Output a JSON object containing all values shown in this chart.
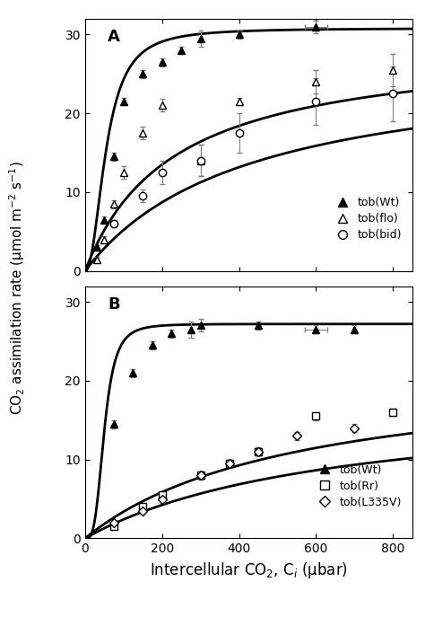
{
  "panel_A": {
    "label": "A",
    "wt": {
      "x": [
        30,
        50,
        75,
        100,
        150,
        200,
        250,
        300,
        400,
        600
      ],
      "y": [
        3.0,
        6.5,
        14.5,
        21.5,
        25.0,
        26.5,
        28.0,
        29.5,
        30.0,
        31.0
      ],
      "yerr": [
        0.3,
        0.4,
        0.5,
        0.5,
        0.5,
        0.5,
        0.5,
        1.0,
        0.5,
        0.8
      ],
      "xerr": [
        null,
        null,
        null,
        null,
        null,
        null,
        null,
        null,
        null,
        30
      ]
    },
    "flo": {
      "x": [
        30,
        50,
        75,
        100,
        150,
        200,
        300,
        400,
        600,
        800
      ],
      "y": [
        1.5,
        4.0,
        8.5,
        12.5,
        17.5,
        21.0,
        14.0,
        21.5,
        24.0,
        25.5
      ],
      "yerr": [
        0.3,
        0.4,
        0.5,
        0.8,
        0.8,
        0.8,
        2.0,
        0.5,
        1.5,
        2.0
      ],
      "xerr": [
        null,
        null,
        null,
        null,
        null,
        null,
        null,
        null,
        null,
        null
      ]
    },
    "bid": {
      "x": [
        75,
        150,
        200,
        300,
        400,
        600,
        800
      ],
      "y": [
        6.0,
        9.5,
        12.5,
        14.0,
        17.5,
        21.5,
        22.5
      ],
      "yerr": [
        0.5,
        0.8,
        1.5,
        2.0,
        2.5,
        3.0,
        3.5
      ],
      "xerr": [
        null,
        null,
        null,
        null,
        null,
        null,
        null
      ]
    },
    "wt_curve": {
      "Amax": 30.8,
      "k": 55.0,
      "n": 2.2
    },
    "flo_curve": {
      "Amax": 29.0,
      "k": 230.0,
      "n": 1.0
    },
    "bid_curve": {
      "Amax": 27.0,
      "k": 420.0,
      "n": 1.0
    },
    "ylim": [
      0,
      32
    ],
    "yticks": [
      0,
      10,
      20,
      30
    ],
    "legend_entries": [
      "tob(Wt)",
      "tob(flo)",
      "tob(bid)"
    ]
  },
  "panel_B": {
    "label": "B",
    "wt": {
      "x": [
        75,
        125,
        175,
        225,
        275,
        300,
        450,
        600,
        700
      ],
      "y": [
        14.5,
        21.0,
        24.5,
        26.0,
        26.5,
        27.0,
        27.0,
        26.5,
        26.5
      ],
      "yerr": [
        0.5,
        0.5,
        0.5,
        0.5,
        1.0,
        0.8,
        0.5,
        0.5,
        0.5
      ],
      "xerr": [
        null,
        null,
        null,
        null,
        null,
        null,
        null,
        30,
        null
      ]
    },
    "Rr": {
      "x": [
        75,
        150,
        200,
        300,
        375,
        450,
        600,
        800
      ],
      "y": [
        1.5,
        4.0,
        5.5,
        8.0,
        9.5,
        11.0,
        15.5,
        16.0
      ],
      "yerr": [
        0.3,
        0.4,
        0.5,
        0.5,
        0.5,
        0.5,
        0.5,
        0.5
      ],
      "xerr": [
        null,
        null,
        null,
        null,
        null,
        null,
        null,
        null
      ]
    },
    "L335V": {
      "x": [
        75,
        150,
        200,
        300,
        375,
        450,
        550,
        700
      ],
      "y": [
        2.0,
        3.5,
        5.0,
        8.0,
        9.5,
        11.0,
        13.0,
        14.0
      ],
      "yerr": [
        0.3,
        0.4,
        0.5,
        0.5,
        0.5,
        0.5,
        0.5,
        0.5
      ],
      "xerr": [
        null,
        null,
        null,
        null,
        null,
        null,
        null,
        null
      ]
    },
    "wt_curve": {
      "Amax": 27.2,
      "k": 50.0,
      "n": 3.5
    },
    "Rr_curve": {
      "Amax": 22.0,
      "k": 550.0,
      "n": 1.0
    },
    "L335V_curve": {
      "Amax": 18.0,
      "k": 650.0,
      "n": 1.0
    },
    "ylim": [
      0,
      32
    ],
    "yticks": [
      0,
      10,
      20,
      30
    ],
    "legend_entries": [
      "tob(Wt)",
      "tob(Rr)",
      "tob(L335V)"
    ]
  },
  "xlim": [
    0,
    850
  ],
  "xticks": [
    0,
    200,
    400,
    600,
    800
  ],
  "xlabel": "Intercellular CO$_2$, C$_i$ (μbar)",
  "ylabel": "CO$_2$ assimilation rate (μmol m$^{-2}$ s$^{-1}$)",
  "linewidth": 2.0,
  "markersize": 6,
  "errorbar_color": "gray",
  "capsize": 2
}
